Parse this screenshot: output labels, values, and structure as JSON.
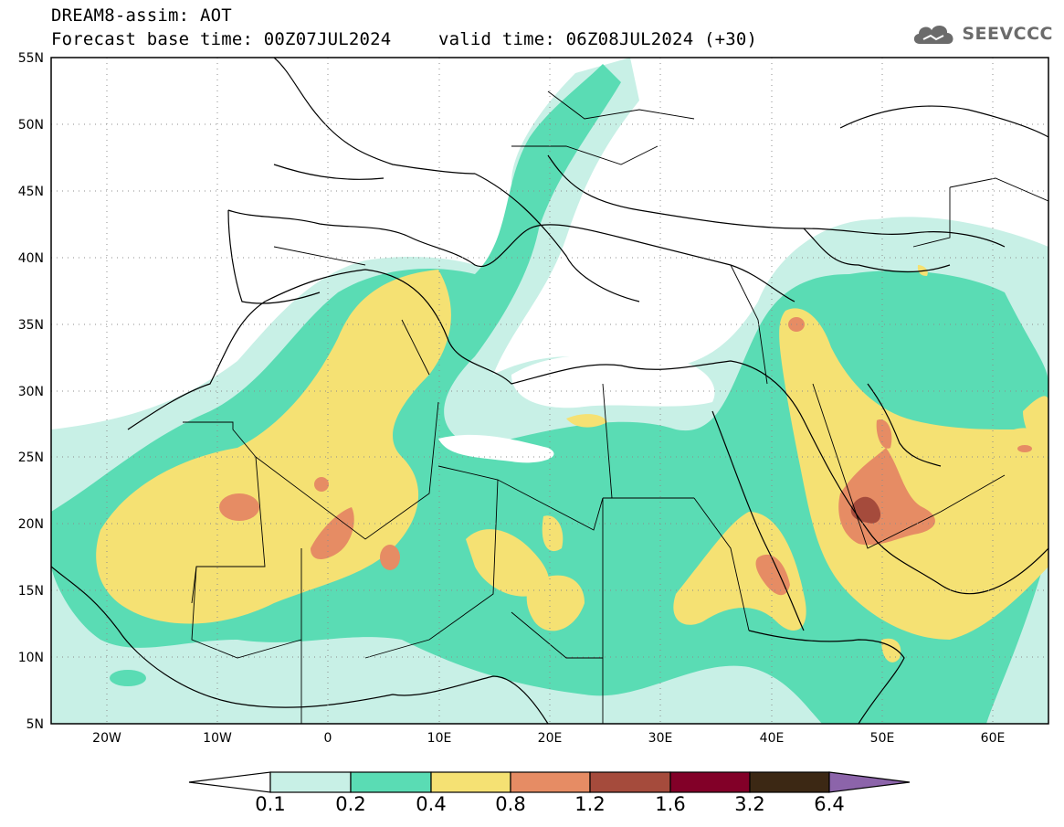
{
  "header": {
    "model_title": "DREAM8-assim: AOT",
    "base_time": "Forecast base time: 00Z07JUL2024",
    "valid_time": "valid time: 06Z08JUL2024 (+30)"
  },
  "logo": {
    "icon": "cloud-icon",
    "text": "SEEVCCC",
    "color": "#6b6b6b"
  },
  "map": {
    "lon_range": [
      -25,
      65
    ],
    "lat_range": [
      5,
      55
    ],
    "lat_labels": [
      "5N",
      "10N",
      "15N",
      "20N",
      "25N",
      "30N",
      "35N",
      "40N",
      "45N",
      "50N",
      "55N"
    ],
    "lon_labels": [
      "20W",
      "10W",
      "0",
      "10E",
      "20E",
      "30E",
      "40E",
      "50E",
      "60E"
    ]
  },
  "colorbar": {
    "labels": [
      "0.1",
      "0.2",
      "0.4",
      "0.8",
      "1.2",
      "1.6",
      "3.2",
      "6.4"
    ],
    "colors": [
      "#c8f0e6",
      "#5adcb4",
      "#f5e173",
      "#e68c64",
      "#a54b3c",
      "#820028",
      "#3c2814",
      "#8c64aa"
    ]
  }
}
